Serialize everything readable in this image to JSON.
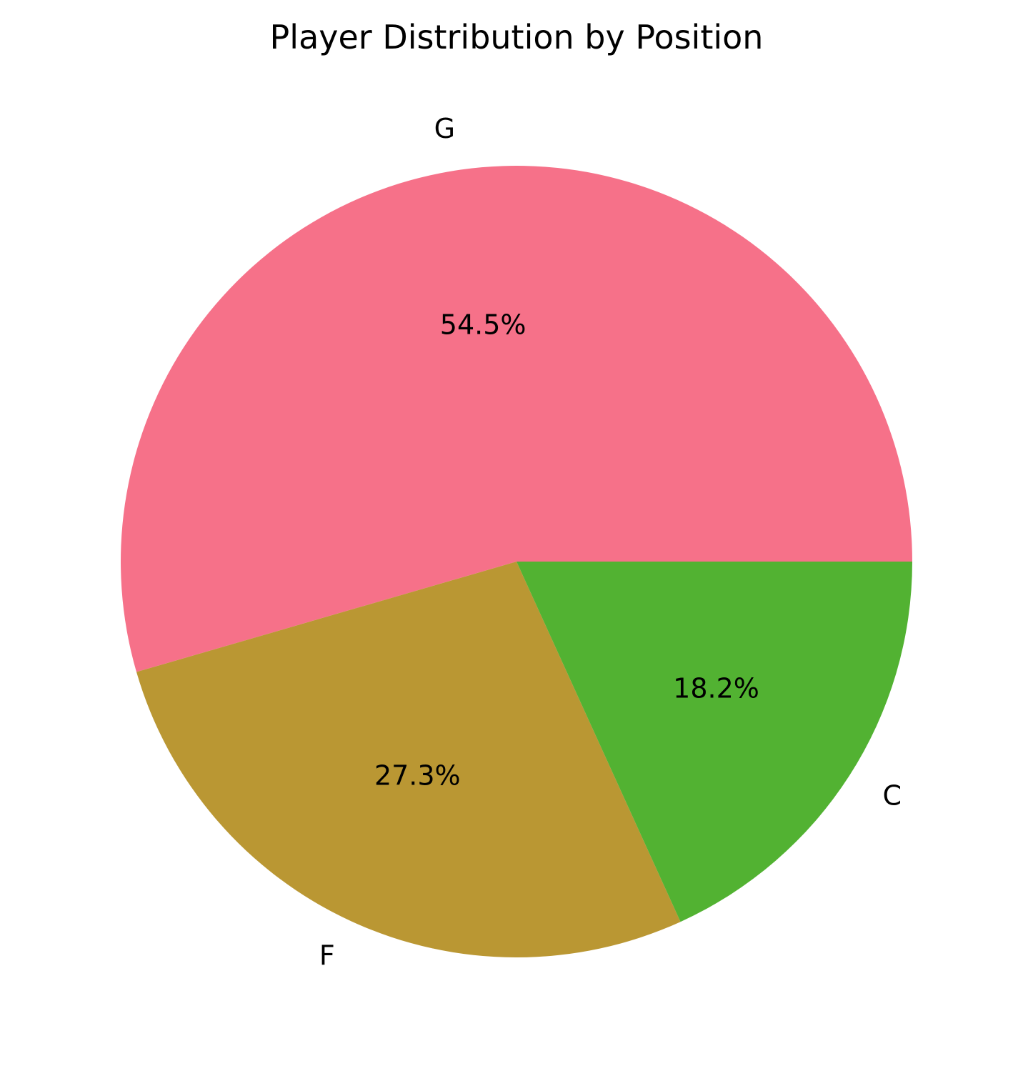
{
  "chart_data": {
    "type": "pie",
    "title": "Player Distribution by Position",
    "categories": [
      "G",
      "F",
      "C"
    ],
    "values": [
      54.5,
      27.3,
      18.2
    ],
    "value_labels": [
      "54.5%",
      "27.3%",
      "18.2%"
    ],
    "colors": [
      "#f67189",
      "#ba9733",
      "#52b232"
    ],
    "start_angle_deg": 0,
    "direction": "counterclockwise",
    "legend": "none"
  }
}
